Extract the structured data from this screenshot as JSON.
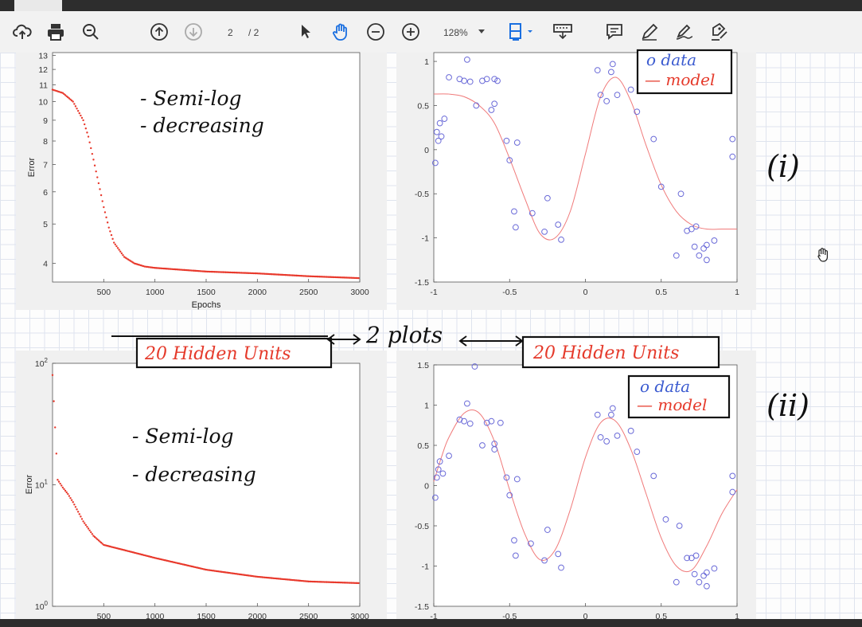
{
  "toolbar": {
    "page_current": "2",
    "page_total": "/ 2",
    "zoom": "128%",
    "icons": [
      "upload-icon",
      "print-icon",
      "search-icon",
      "page-up-icon",
      "page-down-icon",
      "pointer-icon",
      "hand-icon",
      "zoom-out-icon",
      "zoom-in-icon",
      "fit-width-icon",
      "presentation-icon",
      "comment-icon",
      "pen-icon",
      "signature-icon",
      "form-edit-icon"
    ]
  },
  "annotations": {
    "top_left_note_1": "- Semi-log",
    "top_left_note_2": "- decreasing",
    "bottom_left_note_1": "- Semi-log",
    "bottom_left_note_2": "- decreasing",
    "legend_data": "o data",
    "legend_model": "— model",
    "label_i": "(i)",
    "label_ii": "(ii)",
    "hidden_units_left": "20 Hidden Units",
    "hidden_units_right": "20 Hidden Units",
    "two_plots": "2 plots"
  },
  "colors": {
    "curve": "#e8382b",
    "data_marker": "#6b6bd8",
    "model_line": "#f07a7a",
    "ink": "#111111",
    "red_ink": "#e53a2b",
    "blue_ink": "#3b5bd0"
  },
  "chart_data": [
    {
      "type": "scatter",
      "ylabel": "Error",
      "xlabel": "Epochs",
      "yscale": "log",
      "yticks": [
        "4",
        "5",
        "6",
        "7",
        "8",
        "9",
        "10",
        "11",
        "12",
        "13"
      ],
      "xticks": [
        "500",
        "1000",
        "1500",
        "2000",
        "2500",
        "3000"
      ],
      "xlim": [
        0,
        3000
      ],
      "ylim": [
        3.6,
        13.2
      ],
      "x": [
        0,
        100,
        200,
        300,
        350,
        400,
        450,
        500,
        550,
        600,
        700,
        800,
        900,
        1000,
        1500,
        2000,
        2500,
        3000
      ],
      "y": [
        10.7,
        10.5,
        10.0,
        9.0,
        8.2,
        7.2,
        6.3,
        5.5,
        4.9,
        4.5,
        4.15,
        4.0,
        3.93,
        3.9,
        3.82,
        3.78,
        3.72,
        3.68
      ]
    },
    {
      "type": "scatter+line",
      "xlim": [
        -1,
        1
      ],
      "ylim": [
        -1.5,
        1.1
      ],
      "xticks": [
        "-1",
        "-0.5",
        "0",
        "0.5",
        "1"
      ],
      "yticks": [
        "-1.5",
        "-1",
        "-0.5",
        "0",
        "0.5",
        "1"
      ],
      "series": [
        {
          "name": "data",
          "x": [
            -0.99,
            -0.97,
            -0.98,
            -0.96,
            -0.95,
            -0.93,
            -0.9,
            -0.83,
            -0.8,
            -0.78,
            -0.76,
            -0.72,
            -0.68,
            -0.65,
            -0.62,
            -0.6,
            -0.6,
            -0.58,
            -0.52,
            -0.5,
            -0.47,
            -0.46,
            -0.45,
            -0.35,
            -0.27,
            -0.25,
            -0.18,
            -0.16,
            0.08,
            0.1,
            0.14,
            0.17,
            0.18,
            0.21,
            0.3,
            0.34,
            0.45,
            0.5,
            0.6,
            0.63,
            0.67,
            0.7,
            0.72,
            0.73,
            0.75,
            0.78,
            0.8,
            0.8,
            0.85,
            0.97,
            0.97
          ],
          "y": [
            -0.15,
            0.1,
            0.2,
            0.3,
            0.15,
            0.35,
            0.82,
            0.8,
            0.78,
            1.02,
            0.77,
            0.5,
            0.78,
            0.8,
            0.45,
            0.52,
            0.8,
            0.78,
            0.1,
            -0.12,
            -0.7,
            -0.88,
            0.08,
            -0.72,
            -0.93,
            -0.55,
            -0.85,
            -1.02,
            0.9,
            0.62,
            0.55,
            0.88,
            0.97,
            0.62,
            0.68,
            0.43,
            0.12,
            -0.42,
            -1.2,
            -0.5,
            -0.92,
            -0.9,
            -1.1,
            -0.87,
            -1.2,
            -1.12,
            -1.25,
            -1.08,
            -1.03,
            0.12,
            -0.08
          ]
        },
        {
          "name": "model",
          "x": [
            -1,
            -0.9,
            -0.8,
            -0.7,
            -0.6,
            -0.5,
            -0.4,
            -0.3,
            -0.2,
            -0.1,
            0,
            0.1,
            0.2,
            0.3,
            0.4,
            0.5,
            0.6,
            0.7,
            0.8,
            0.9,
            1
          ],
          "y": [
            0.63,
            0.63,
            0.6,
            0.5,
            0.3,
            -0.1,
            -0.55,
            -0.95,
            -1.0,
            -0.7,
            -0.05,
            0.6,
            0.82,
            0.55,
            0.05,
            -0.4,
            -0.7,
            -0.85,
            -0.9,
            -0.9,
            -0.9
          ]
        }
      ]
    },
    {
      "type": "scatter",
      "ylabel": "Error",
      "yscale": "log",
      "yticks": [
        "10^0",
        "10^1",
        "10^2"
      ],
      "xticks": [
        "500",
        "1000",
        "1500",
        "2000",
        "2500",
        "3000"
      ],
      "xlim": [
        0,
        3000
      ],
      "ylim": [
        1,
        100
      ],
      "x": [
        0,
        50,
        100,
        150,
        200,
        300,
        400,
        500,
        700,
        1000,
        1500,
        2000,
        2500,
        3000
      ],
      "y": [
        80,
        11,
        9.5,
        8.4,
        7.2,
        5.0,
        3.8,
        3.2,
        2.9,
        2.5,
        2.0,
        1.75,
        1.6,
        1.55
      ]
    },
    {
      "type": "scatter+line",
      "xlim": [
        -1,
        1
      ],
      "ylim": [
        -1.5,
        1.5
      ],
      "xticks": [
        "-1",
        "-0.5",
        "0",
        "0.5",
        "1"
      ],
      "yticks": [
        "-1.5",
        "-1",
        "-0.5",
        "0",
        "0.5",
        "1",
        "1.5"
      ],
      "series": [
        {
          "name": "data",
          "x": [
            -0.99,
            -0.98,
            -0.97,
            -0.96,
            -0.94,
            -0.9,
            -0.83,
            -0.8,
            -0.78,
            -0.76,
            -0.73,
            -0.68,
            -0.65,
            -0.62,
            -0.6,
            -0.6,
            -0.56,
            -0.52,
            -0.5,
            -0.47,
            -0.46,
            -0.45,
            -0.36,
            -0.27,
            -0.25,
            -0.18,
            -0.16,
            0.08,
            0.1,
            0.14,
            0.17,
            0.18,
            0.21,
            0.3,
            0.34,
            0.45,
            0.53,
            0.6,
            0.62,
            0.67,
            0.7,
            0.72,
            0.73,
            0.75,
            0.78,
            0.8,
            0.8,
            0.85,
            0.97,
            0.97
          ],
          "y": [
            -0.15,
            0.1,
            0.2,
            0.3,
            0.15,
            0.37,
            0.82,
            0.8,
            1.02,
            0.77,
            1.48,
            0.5,
            0.78,
            0.8,
            0.45,
            0.52,
            0.78,
            0.1,
            -0.12,
            -0.68,
            -0.87,
            0.08,
            -0.72,
            -0.93,
            -0.55,
            -0.85,
            -1.02,
            0.88,
            0.6,
            0.55,
            0.88,
            0.96,
            0.62,
            0.68,
            0.42,
            0.12,
            -0.42,
            -1.2,
            -0.5,
            -0.9,
            -0.9,
            -1.1,
            -0.87,
            -1.2,
            -1.12,
            -1.25,
            -1.08,
            -1.03,
            0.12,
            -0.08
          ]
        },
        {
          "name": "model",
          "x": [
            -1,
            -0.95,
            -0.9,
            -0.8,
            -0.7,
            -0.6,
            -0.5,
            -0.4,
            -0.3,
            -0.2,
            -0.1,
            0,
            0.1,
            0.2,
            0.3,
            0.4,
            0.5,
            0.6,
            0.7,
            0.8,
            0.9,
            1
          ],
          "y": [
            0.05,
            0.35,
            0.6,
            0.9,
            0.9,
            0.55,
            -0.05,
            -0.6,
            -0.92,
            -0.8,
            -0.3,
            0.35,
            0.78,
            0.8,
            0.45,
            -0.1,
            -0.65,
            -1.0,
            -1.05,
            -0.75,
            -0.35,
            -0.05
          ]
        }
      ]
    }
  ]
}
